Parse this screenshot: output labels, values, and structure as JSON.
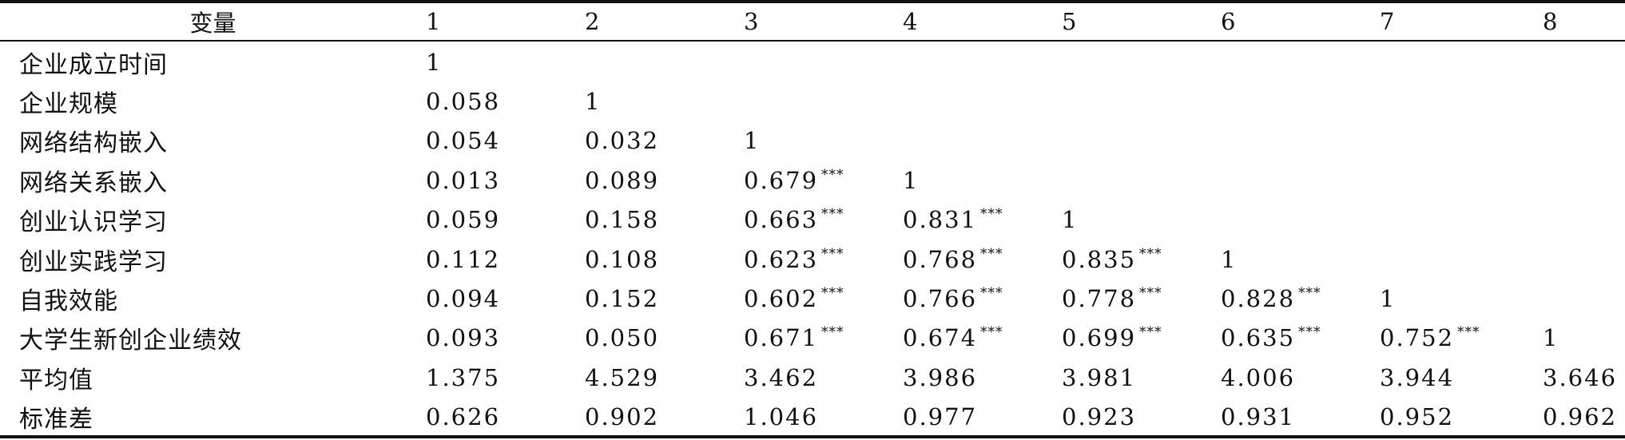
{
  "table": {
    "columns": [
      "变量",
      "1",
      "2",
      "3",
      "4",
      "5",
      "6",
      "7",
      "8"
    ],
    "rows": [
      {
        "label": "企业成立时间",
        "cells": [
          {
            "v": "1",
            "s": ""
          },
          null,
          null,
          null,
          null,
          null,
          null,
          null
        ]
      },
      {
        "label": "企业规模",
        "cells": [
          {
            "v": "0.058",
            "s": ""
          },
          {
            "v": "1",
            "s": ""
          },
          null,
          null,
          null,
          null,
          null,
          null
        ]
      },
      {
        "label": "网络结构嵌入",
        "cells": [
          {
            "v": "0.054",
            "s": ""
          },
          {
            "v": "0.032",
            "s": ""
          },
          {
            "v": "1",
            "s": ""
          },
          null,
          null,
          null,
          null,
          null
        ]
      },
      {
        "label": "网络关系嵌入",
        "cells": [
          {
            "v": "0.013",
            "s": ""
          },
          {
            "v": "0.089",
            "s": ""
          },
          {
            "v": "0.679",
            "s": "***"
          },
          {
            "v": "1",
            "s": ""
          },
          null,
          null,
          null,
          null
        ]
      },
      {
        "label": "创业认识学习",
        "cells": [
          {
            "v": "0.059",
            "s": ""
          },
          {
            "v": "0.158",
            "s": ""
          },
          {
            "v": "0.663",
            "s": "***"
          },
          {
            "v": "0.831",
            "s": "***"
          },
          {
            "v": "1",
            "s": ""
          },
          null,
          null,
          null
        ]
      },
      {
        "label": "创业实践学习",
        "cells": [
          {
            "v": "0.112",
            "s": ""
          },
          {
            "v": "0.108",
            "s": ""
          },
          {
            "v": "0.623",
            "s": "***"
          },
          {
            "v": "0.768",
            "s": "***"
          },
          {
            "v": "0.835",
            "s": "***"
          },
          {
            "v": "1",
            "s": ""
          },
          null,
          null
        ]
      },
      {
        "label": "自我效能",
        "cells": [
          {
            "v": "0.094",
            "s": ""
          },
          {
            "v": "0.152",
            "s": ""
          },
          {
            "v": "0.602",
            "s": "***"
          },
          {
            "v": "0.766",
            "s": "***"
          },
          {
            "v": "0.778",
            "s": "***"
          },
          {
            "v": "0.828",
            "s": "***"
          },
          {
            "v": "1",
            "s": ""
          },
          null
        ]
      },
      {
        "label": "大学生新创企业绩效",
        "cells": [
          {
            "v": "0.093",
            "s": ""
          },
          {
            "v": "0.050",
            "s": ""
          },
          {
            "v": "0.671",
            "s": "***"
          },
          {
            "v": "0.674",
            "s": "***"
          },
          {
            "v": "0.699",
            "s": "***"
          },
          {
            "v": "0.635",
            "s": "***"
          },
          {
            "v": "0.752",
            "s": "***"
          },
          {
            "v": "1",
            "s": ""
          }
        ]
      },
      {
        "label": "平均值",
        "cells": [
          {
            "v": "1.375",
            "s": ""
          },
          {
            "v": "4.529",
            "s": ""
          },
          {
            "v": "3.462",
            "s": ""
          },
          {
            "v": "3.986",
            "s": ""
          },
          {
            "v": "3.981",
            "s": ""
          },
          {
            "v": "4.006",
            "s": ""
          },
          {
            "v": "3.944",
            "s": ""
          },
          {
            "v": "3.646",
            "s": ""
          }
        ]
      },
      {
        "label": "标准差",
        "cells": [
          {
            "v": "0.626",
            "s": ""
          },
          {
            "v": "0.902",
            "s": ""
          },
          {
            "v": "1.046",
            "s": ""
          },
          {
            "v": "0.977",
            "s": ""
          },
          {
            "v": "0.923",
            "s": ""
          },
          {
            "v": "0.931",
            "s": ""
          },
          {
            "v": "0.952",
            "s": ""
          },
          {
            "v": "0.962",
            "s": ""
          }
        ]
      }
    ]
  }
}
